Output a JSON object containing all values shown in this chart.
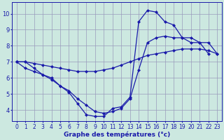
{
  "xlabel": "Graphe des températures (°c)",
  "hours": [
    0,
    1,
    2,
    3,
    4,
    5,
    6,
    7,
    8,
    9,
    10,
    11,
    12,
    13,
    14,
    15,
    16,
    17,
    18,
    19,
    20,
    21,
    22,
    23
  ],
  "line1": [
    7.0,
    7.0,
    6.6,
    6.2,
    6.0,
    5.5,
    5.1,
    4.4,
    3.7,
    3.6,
    3.6,
    4.1,
    4.2,
    4.8,
    9.5,
    10.2,
    10.1,
    9.5,
    9.3,
    8.5,
    8.2,
    8.2,
    7.5,
    null
  ],
  "line2": [
    7.0,
    6.6,
    6.4,
    6.2,
    5.9,
    5.5,
    5.2,
    4.7,
    4.3,
    3.9,
    3.8,
    3.9,
    4.1,
    4.7,
    6.5,
    8.2,
    8.5,
    8.6,
    8.5,
    8.5,
    8.5,
    8.2,
    8.2,
    7.5
  ],
  "line3": [
    7.0,
    7.0,
    6.9,
    6.8,
    6.7,
    6.6,
    6.5,
    6.4,
    6.4,
    6.4,
    6.5,
    6.6,
    6.8,
    7.0,
    7.2,
    7.4,
    7.5,
    7.6,
    7.7,
    7.8,
    7.8,
    7.8,
    7.7,
    7.5
  ],
  "line_color": "#1a1aaa",
  "bg_color": "#cce8e0",
  "grid_color": "#9999bb",
  "ylim_min": 3.3,
  "ylim_max": 10.7,
  "yticks": [
    4,
    5,
    6,
    7,
    8,
    9,
    10
  ],
  "marker": "D",
  "marker_size": 2.0,
  "linewidth": 0.9,
  "xlabel_fontsize": 6.5,
  "tick_fontsize": 5.5
}
